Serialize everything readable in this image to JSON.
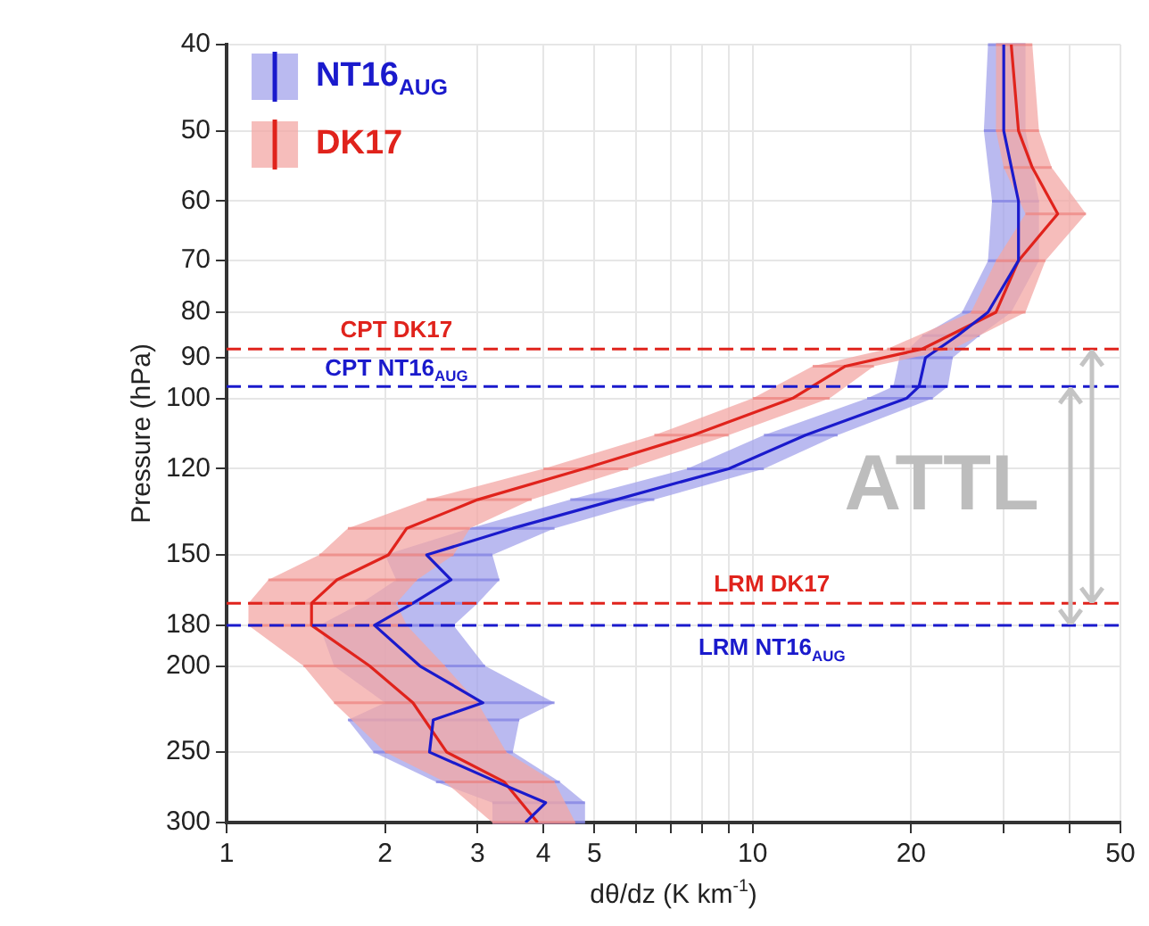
{
  "chart_data": {
    "type": "line",
    "xlabel": "dθ/dz (K km$^{-1}$)",
    "ylabel": "Pressure (hPa)",
    "log": "xy",
    "xlim": [
      1,
      50
    ],
    "xticks": [
      1,
      2,
      3,
      4,
      5,
      {
        "value": 6,
        "label": null
      },
      {
        "value": 7,
        "label": null
      },
      {
        "value": 8,
        "label": null
      },
      {
        "value": 9,
        "label": null
      },
      10,
      20,
      {
        "value": 30,
        "label": null
      },
      {
        "value": 40,
        "label": null
      },
      50
    ],
    "ylim": [
      300,
      40
    ],
    "yticks": [
      40,
      50,
      60,
      70,
      80,
      90,
      100,
      120,
      150,
      180,
      200,
      250,
      300
    ],
    "grid": true,
    "legend": "top left",
    "line_style": "solid",
    "marker": "none",
    "series": [
      {
        "name": "NT16$_{AUG}$",
        "color": "#1a1acc",
        "x": [
          30,
          30,
          32,
          32,
          28,
          24.5,
          21.3,
          20.7,
          19.6,
          12.6,
          9,
          5.5,
          3.5,
          2.4,
          2.67,
          2.26,
          1.91,
          2.33,
          3.07,
          2.47,
          2.43,
          3.26,
          4.04,
          3.7
        ],
        "values": [
          40,
          50,
          60,
          70,
          80,
          85,
          90,
          97,
          100,
          110,
          120,
          130,
          140,
          150,
          160,
          170,
          180,
          200,
          220,
          230,
          250,
          270,
          285,
          300
        ],
        "xerrors": [
          [
            28,
            33
          ],
          [
            27.5,
            33
          ],
          [
            28.5,
            35
          ],
          [
            28,
            35
          ],
          [
            25,
            31
          ],
          [
            21,
            27
          ],
          [
            19,
            24
          ],
          [
            18.5,
            23.5
          ],
          [
            16.5,
            22
          ],
          [
            10.5,
            14.5
          ],
          [
            7.5,
            10.5
          ],
          [
            4.5,
            6.5
          ],
          [
            2.9,
            4.2
          ],
          [
            2,
            3.2
          ],
          [
            2.1,
            3.3
          ],
          [
            1.8,
            3
          ],
          [
            1.5,
            2.7
          ],
          [
            1.6,
            3.1
          ],
          [
            2,
            4.2
          ],
          [
            1.7,
            3.6
          ],
          [
            1.9,
            3.5
          ],
          [
            2.5,
            4.3
          ],
          [
            3.2,
            4.8
          ],
          [
            3.2,
            4.8
          ]
        ]
      },
      {
        "name": "DK17",
        "color": "#e0231c",
        "x": [
          31,
          32,
          34,
          38,
          32,
          29,
          21,
          15,
          11.9,
          7.7,
          4.77,
          3,
          2.2,
          2.03,
          1.62,
          1.45,
          1.45,
          1.87,
          2.26,
          2.62,
          3.37,
          3.9
        ],
        "values": [
          40,
          50,
          55,
          62,
          70,
          80,
          88,
          92,
          100,
          110,
          120,
          130,
          140,
          150,
          160,
          170,
          180,
          200,
          220,
          250,
          270,
          300
        ],
        "xerrors": [
          [
            29,
            34
          ],
          [
            29,
            35
          ],
          [
            30,
            37
          ],
          [
            33,
            43
          ],
          [
            29,
            36
          ],
          [
            26,
            33
          ],
          [
            18,
            24
          ],
          [
            13,
            17
          ],
          [
            10,
            14
          ],
          [
            6.5,
            9
          ],
          [
            4,
            5.8
          ],
          [
            2.4,
            3.8
          ],
          [
            1.7,
            2.9
          ],
          [
            1.5,
            2.7
          ],
          [
            1.2,
            2.3
          ],
          [
            1.1,
            2.1
          ],
          [
            1.1,
            2.2
          ],
          [
            1.4,
            2.6
          ],
          [
            1.6,
            3
          ],
          [
            2,
            3.4
          ],
          [
            2.6,
            4.2
          ],
          [
            3.2,
            4.6
          ]
        ]
      }
    ],
    "ref_lines": [
      {
        "axis": "y",
        "value": 88,
        "label": "CPT DK17",
        "color": "#e0231c",
        "line_style": "dashed"
      },
      {
        "axis": "y",
        "value": 97,
        "label": "CPT NT16$_{AUG}$",
        "color": "#1a1acc",
        "line_style": "dashed"
      },
      {
        "axis": "y",
        "value": 170,
        "label": "LRM DK17",
        "color": "#e0231c",
        "line_style": "dashed"
      },
      {
        "axis": "y",
        "value": 180,
        "label": "LRM NT16$_{AUG}$",
        "color": "#1a1acc",
        "line_style": "dashed"
      }
    ],
    "annotations": [
      "ATTL"
    ]
  }
}
